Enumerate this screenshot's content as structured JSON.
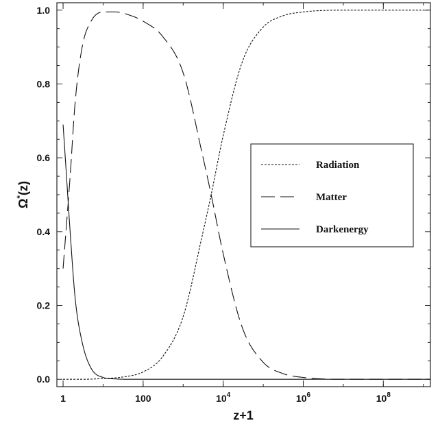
{
  "chart_data": {
    "type": "line",
    "xlabel": "z+1",
    "ylabel_main": "Ω",
    "ylabel_sup": "*",
    "ylabel_tail": "(z)",
    "x_scale": "log",
    "xlim": [
      0.7,
      1500000000
    ],
    "ylim": [
      -0.02,
      1.02
    ],
    "x_ticks": [
      {
        "value": 1,
        "base": "1",
        "exp": ""
      },
      {
        "value": 100,
        "base": "100",
        "exp": ""
      },
      {
        "value": 10000,
        "base": "10",
        "exp": "4"
      },
      {
        "value": 1000000,
        "base": "10",
        "exp": "6"
      },
      {
        "value": 100000000,
        "base": "10",
        "exp": "8"
      }
    ],
    "y_ticks": [
      {
        "value": 0.0,
        "label": "0.0"
      },
      {
        "value": 0.2,
        "label": "0.2"
      },
      {
        "value": 0.4,
        "label": "0.4"
      },
      {
        "value": 0.6,
        "label": "0.6"
      },
      {
        "value": 0.8,
        "label": "0.8"
      },
      {
        "value": 1.0,
        "label": "1.0"
      }
    ],
    "grid": false,
    "legend_position": "center-right",
    "series": [
      {
        "name": "Radiation",
        "dash": "short-dash",
        "x": [
          1,
          3,
          10,
          30,
          100,
          300,
          1000,
          3000,
          5000,
          10000,
          30000,
          100000,
          300000,
          1000000,
          10000000,
          100000000,
          1500000000
        ],
        "y": [
          0.0,
          0.0,
          0.002,
          0.006,
          0.02,
          0.06,
          0.17,
          0.39,
          0.5,
          0.66,
          0.86,
          0.954,
          0.984,
          0.995,
          1.0,
          1.0,
          1.0
        ]
      },
      {
        "name": "Matter",
        "dash": "long-dash",
        "x": [
          1,
          1.5,
          2,
          3,
          5,
          10,
          20,
          50,
          100,
          300,
          1000,
          3000,
          5000,
          10000,
          30000,
          100000,
          300000,
          1000000,
          10000000,
          1500000000
        ],
        "y": [
          0.3,
          0.55,
          0.75,
          0.9,
          0.97,
          0.995,
          0.995,
          0.985,
          0.97,
          0.93,
          0.83,
          0.61,
          0.5,
          0.34,
          0.14,
          0.046,
          0.016,
          0.005,
          0.0,
          0.0
        ]
      },
      {
        "name": "Darkenergy",
        "dash": "solid",
        "x": [
          1,
          1.2,
          1.5,
          2,
          3,
          5,
          10,
          20,
          50,
          100,
          1500000000
        ],
        "y": [
          0.69,
          0.56,
          0.4,
          0.22,
          0.1,
          0.03,
          0.005,
          0.001,
          0.0,
          0.0,
          0.0
        ]
      }
    ]
  }
}
